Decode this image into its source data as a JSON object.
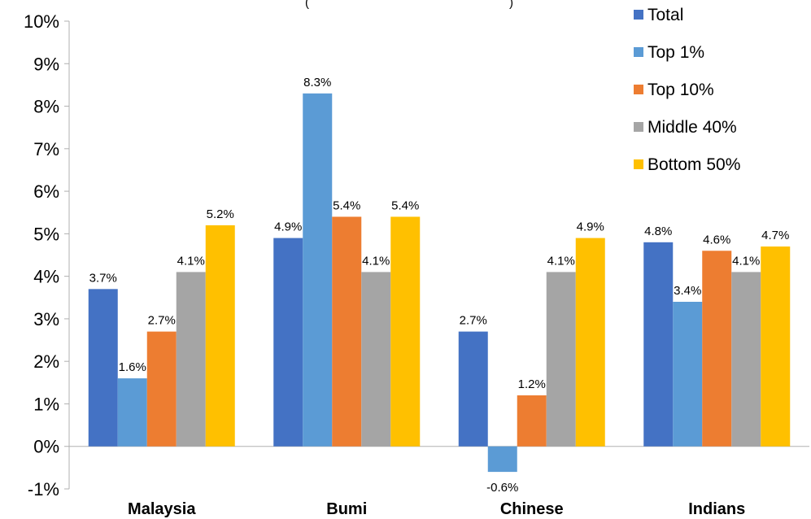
{
  "chart_data": {
    "type": "bar",
    "title": "",
    "xlabel": "",
    "ylabel": "",
    "ylim": [
      -1,
      10
    ],
    "y_ticks": [
      "-1%",
      "0%",
      "1%",
      "2%",
      "3%",
      "4%",
      "5%",
      "6%",
      "7%",
      "8%",
      "9%",
      "10%"
    ],
    "categories": [
      "Malaysia",
      "Bumi",
      "Chinese",
      "Indians"
    ],
    "series": [
      {
        "name": "Total",
        "color": "#4472c4",
        "values": [
          3.7,
          4.9,
          2.7,
          4.8
        ],
        "labels": [
          "3.7%",
          "4.9%",
          "2.7%",
          "4.8%"
        ]
      },
      {
        "name": "Top 1%",
        "color": "#5b9bd5",
        "values": [
          1.6,
          8.3,
          -0.6,
          3.4
        ],
        "labels": [
          "1.6%",
          "8.3%",
          "-0.6%",
          "3.4%"
        ]
      },
      {
        "name": "Top 10%",
        "color": "#ed7d31",
        "values": [
          2.7,
          5.4,
          1.2,
          4.6
        ],
        "labels": [
          "2.7%",
          "5.4%",
          "1.2%",
          "4.6%"
        ]
      },
      {
        "name": "Middle 40%",
        "color": "#a5a5a5",
        "values": [
          4.1,
          4.1,
          4.1,
          4.1
        ],
        "labels": [
          "4.1%",
          "4.1%",
          "4.1%",
          "4.1%"
        ]
      },
      {
        "name": "Bottom 50%",
        "color": "#ffc000",
        "values": [
          5.2,
          5.4,
          4.9,
          4.7
        ],
        "labels": [
          "5.2%",
          "5.4%",
          "4.9%",
          "4.7%"
        ]
      }
    ],
    "legend_position": "top-right",
    "grid": false
  }
}
